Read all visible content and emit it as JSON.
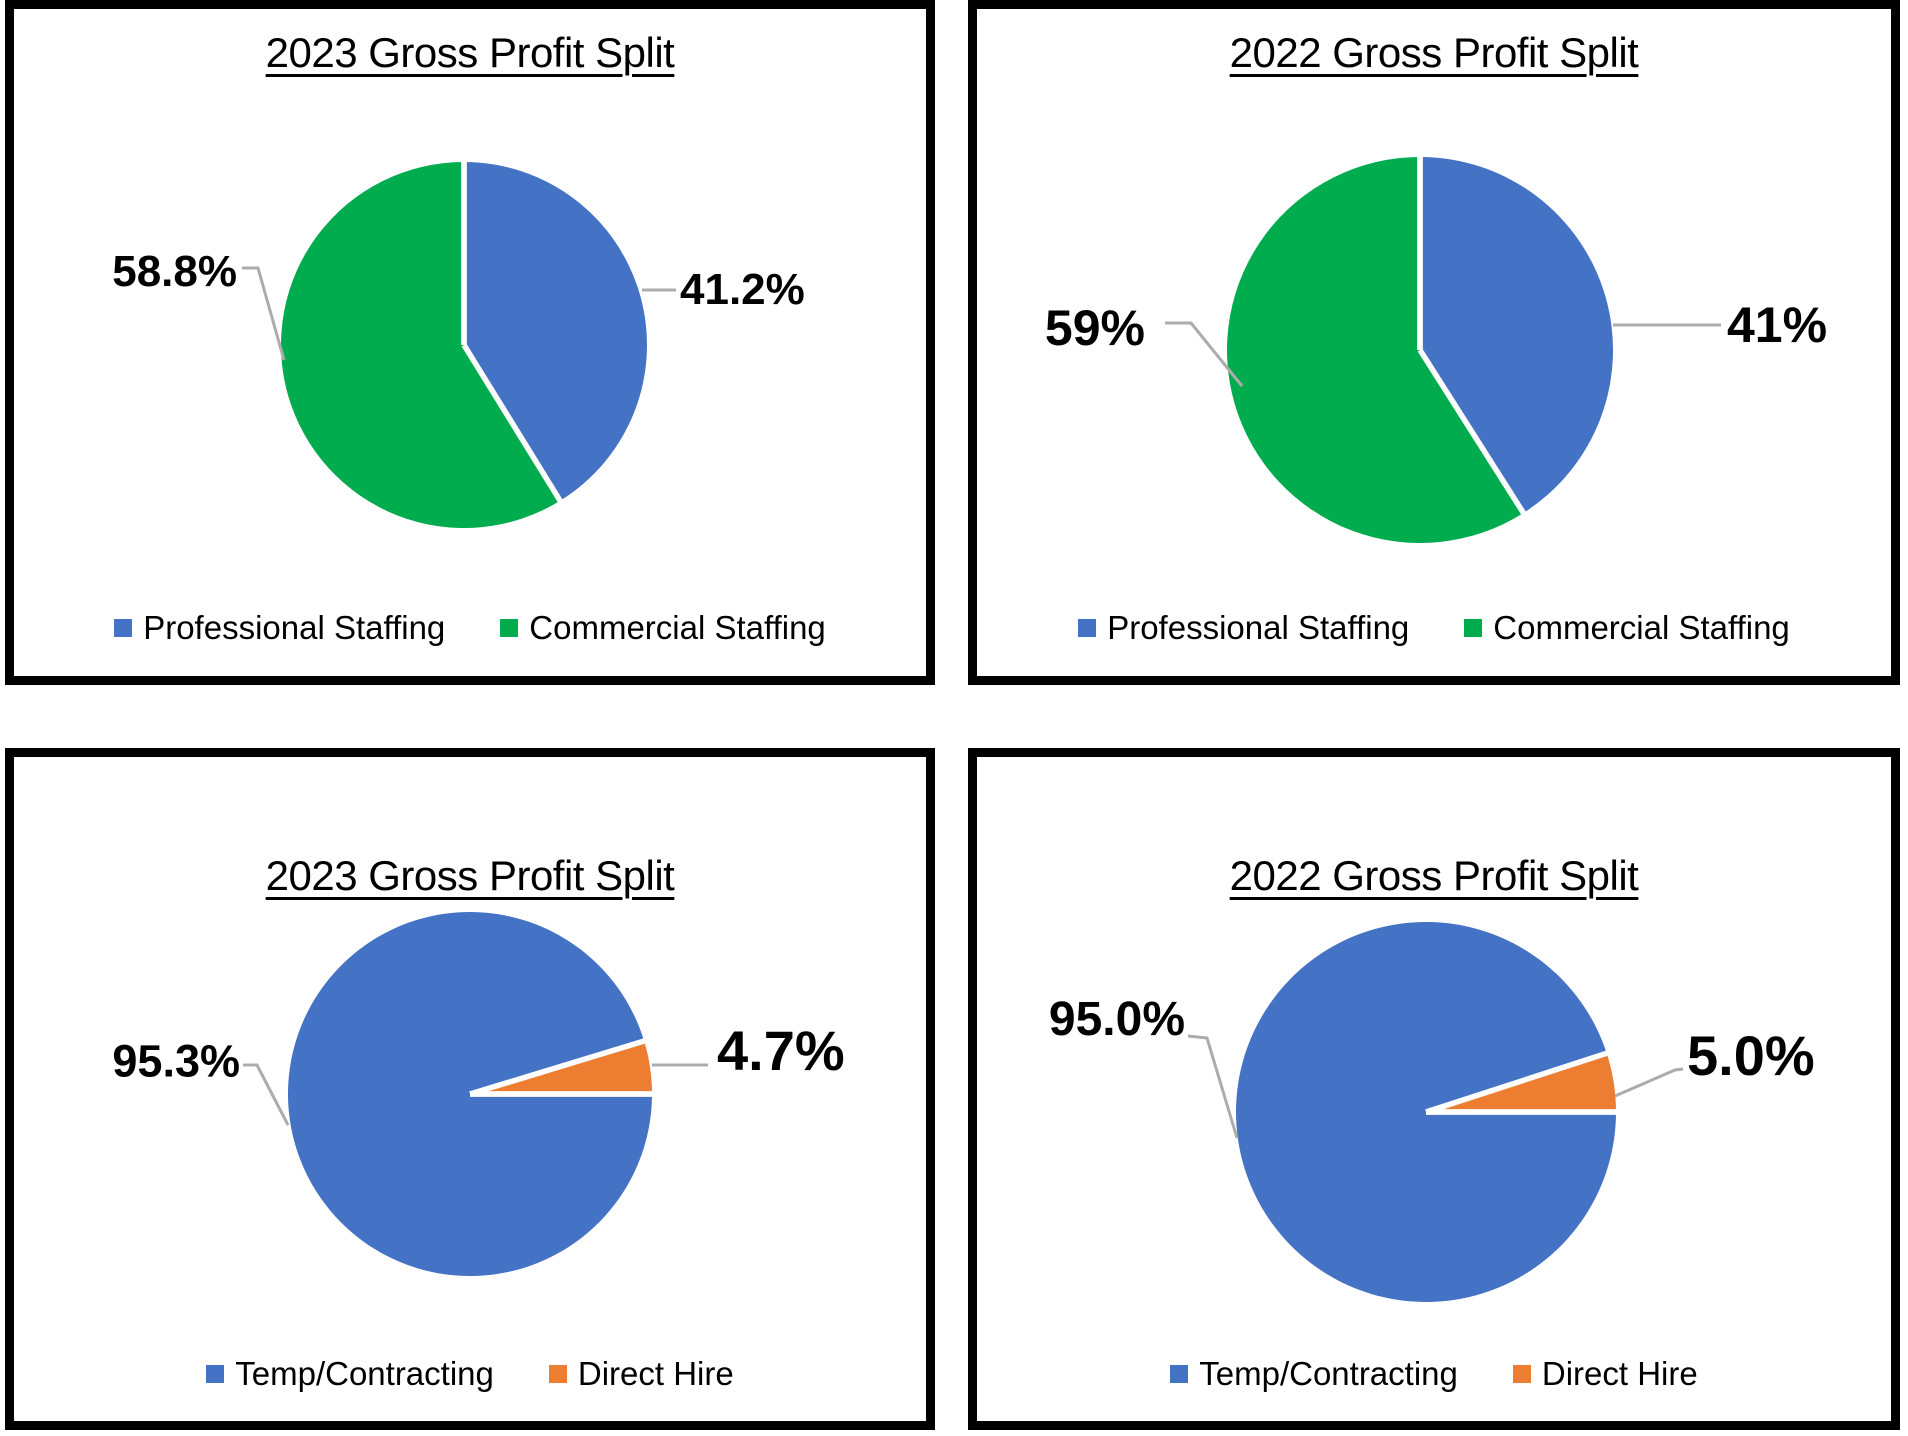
{
  "styles": {
    "panel_border_color": "#000000",
    "leader_line_color": "#ACACAC",
    "background_color": "#FFFFFF",
    "label_text_color": "#000000",
    "accent_blue": "#4472C4",
    "accent_green": "#00AC4E",
    "accent_orange": "#ED7D31"
  },
  "chart_data": [
    {
      "type": "pie",
      "title": "2023 Gross Profit Split",
      "categories": [
        "Professional Staffing",
        "Commercial Staffing"
      ],
      "values": [
        41.2,
        58.8
      ],
      "start_angle_deg": 0,
      "direction": "clockwise",
      "legend_position": "bottom",
      "slices": [
        {
          "name": "Professional Staffing",
          "value": 41.2,
          "data_label": "41.2%",
          "color": "#4472C4"
        },
        {
          "name": "Commercial Staffing",
          "value": 58.8,
          "data_label": "58.8%",
          "color": "#00AC4E"
        }
      ]
    },
    {
      "type": "pie",
      "title": "2022 Gross Profit Split",
      "categories": [
        "Professional Staffing",
        "Commercial Staffing"
      ],
      "values": [
        41,
        59
      ],
      "start_angle_deg": 0,
      "direction": "clockwise",
      "legend_position": "bottom",
      "slices": [
        {
          "name": "Professional Staffing",
          "value": 41,
          "data_label": "41%",
          "color": "#4472C4"
        },
        {
          "name": "Commercial Staffing",
          "value": 59,
          "data_label": "59%",
          "color": "#00AC4E"
        }
      ]
    },
    {
      "type": "pie",
      "title": "2023 Gross Profit Split",
      "categories": [
        "Temp/Contracting",
        "Direct Hire"
      ],
      "values": [
        95.3,
        4.7
      ],
      "start_angle_deg": 90,
      "direction": "clockwise",
      "legend_position": "bottom",
      "slices": [
        {
          "name": "Temp/Contracting",
          "value": 95.3,
          "data_label": "95.3%",
          "color": "#4472C4"
        },
        {
          "name": "Direct Hire",
          "value": 4.7,
          "data_label": "4.7%",
          "color": "#ED7D31"
        }
      ]
    },
    {
      "type": "pie",
      "title": "2022 Gross Profit Split",
      "categories": [
        "Temp/Contracting",
        "Direct Hire"
      ],
      "values": [
        95.0,
        5.0
      ],
      "start_angle_deg": 90,
      "direction": "clockwise",
      "legend_position": "bottom",
      "slices": [
        {
          "name": "Temp/Contracting",
          "value": 95.0,
          "data_label": "95.0%",
          "color": "#4472C4"
        },
        {
          "name": "Direct Hire",
          "value": 5.0,
          "data_label": "5.0%",
          "color": "#ED7D31"
        }
      ]
    }
  ]
}
